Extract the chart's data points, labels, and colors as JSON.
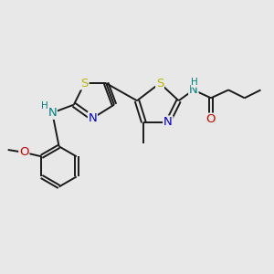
{
  "bg_color": "#e8e8e8",
  "bond_color": "#1a1a1a",
  "S_color": "#b8b800",
  "N_color": "#0000cc",
  "O_color": "#cc0000",
  "NH_color": "#008080",
  "line_width": 1.4,
  "font_size": 8.5,
  "xlim": [
    0,
    10
  ],
  "ylim": [
    0,
    10
  ]
}
